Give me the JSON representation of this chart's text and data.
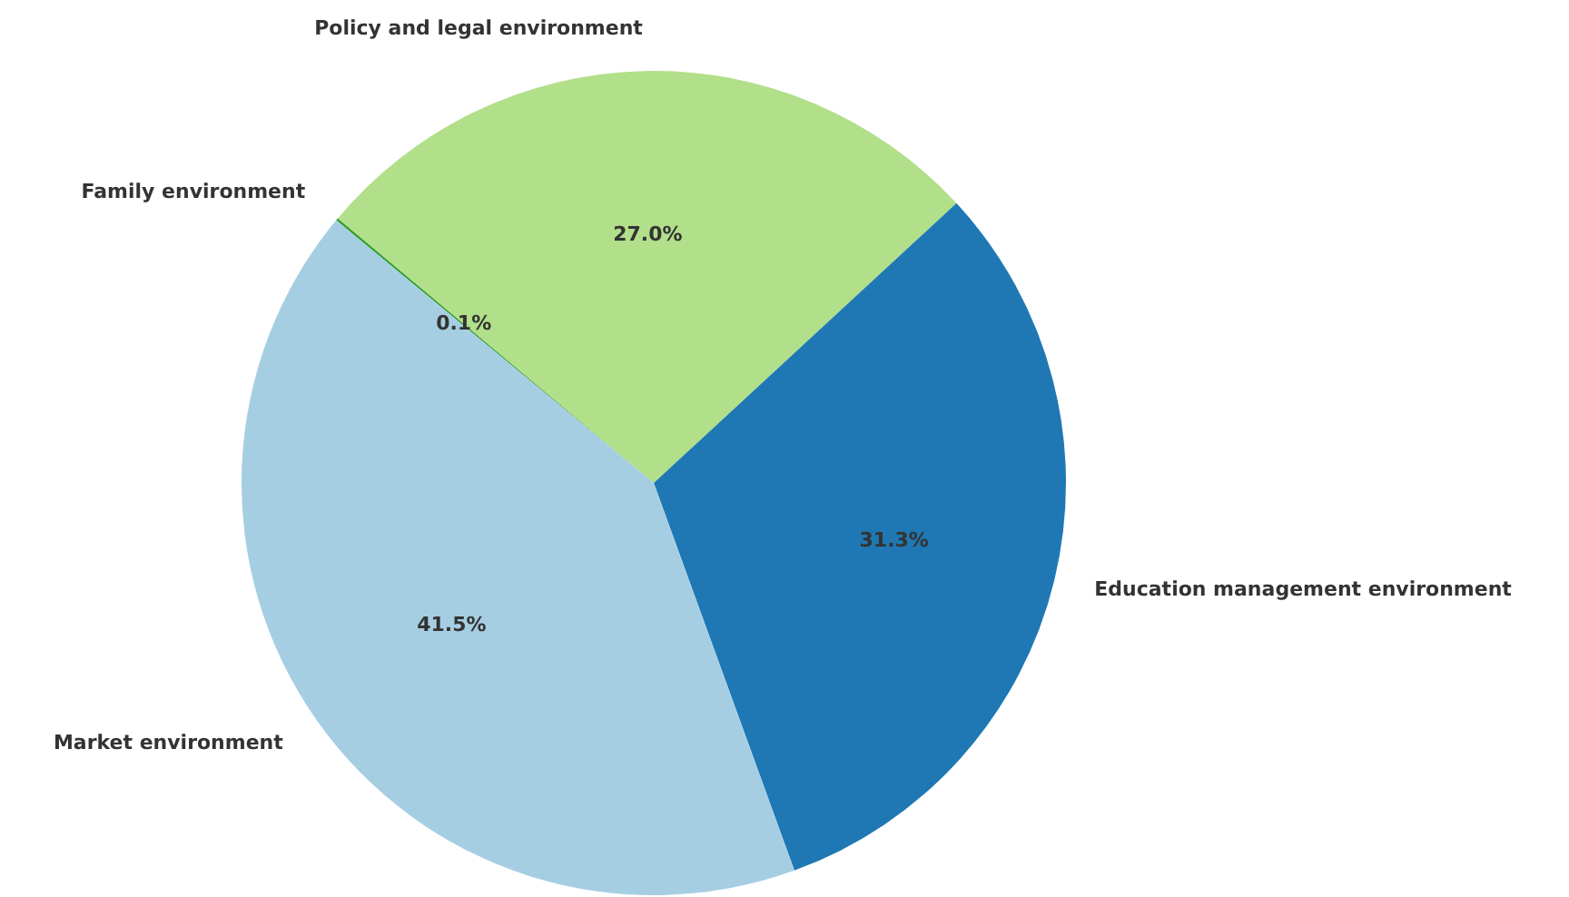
{
  "chart_data": {
    "type": "pie",
    "categories": [
      "Family environment",
      "Policy and legal environment",
      "Education management environment",
      "Market environment"
    ],
    "values": [
      0.1,
      27.0,
      31.3,
      41.5
    ],
    "colors": [
      "#33a02c",
      "#b2df8a",
      "#1f78b4",
      "#a6cee3"
    ],
    "value_labels": [
      "0.1%",
      "27.0%",
      "31.3%",
      "41.5%"
    ],
    "legend": false
  }
}
